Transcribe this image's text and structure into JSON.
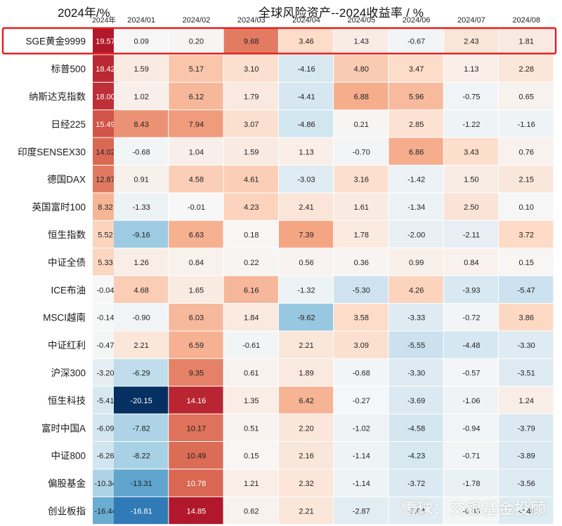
{
  "chart_data": {
    "type": "heatmap",
    "title": "全球风险资产--2024收益率 / %",
    "left_title": "2024年/%",
    "annual_header": "2024年",
    "columns": [
      "2024/01",
      "2024/02",
      "2024/03",
      "2024/04",
      "2024/05",
      "2024/06",
      "2024/07",
      "2024/08"
    ],
    "rows": [
      {
        "name": "SGE黄金9999",
        "annual": 19.57,
        "values": [
          0.09,
          0.2,
          9.68,
          3.46,
          1.43,
          -0.67,
          2.43,
          1.81
        ],
        "highlighted": true
      },
      {
        "name": "标普500",
        "annual": 18.42,
        "values": [
          1.59,
          5.17,
          3.1,
          -4.16,
          4.8,
          3.47,
          1.13,
          2.28
        ]
      },
      {
        "name": "纳斯达克指数",
        "annual": 18.0,
        "values": [
          1.02,
          6.12,
          1.79,
          -4.41,
          6.88,
          5.96,
          -0.75,
          0.65
        ]
      },
      {
        "name": "日经225",
        "annual": 15.49,
        "values": [
          8.43,
          7.94,
          3.07,
          -4.86,
          0.21,
          2.85,
          -1.22,
          -1.16
        ]
      },
      {
        "name": "印度SENSEX30",
        "annual": 14.02,
        "values": [
          -0.68,
          1.04,
          1.59,
          1.13,
          -0.7,
          6.86,
          3.43,
          0.76
        ]
      },
      {
        "name": "德国DAX",
        "annual": 12.87,
        "values": [
          0.91,
          4.58,
          4.61,
          -3.03,
          3.16,
          -1.42,
          1.5,
          2.15
        ]
      },
      {
        "name": "英国富时100",
        "annual": 8.32,
        "values": [
          -1.33,
          -0.01,
          4.23,
          2.41,
          1.61,
          -1.34,
          2.5,
          0.1
        ]
      },
      {
        "name": "恒生指数",
        "annual": 5.52,
        "values": [
          -9.16,
          6.63,
          0.18,
          7.39,
          1.78,
          -2.0,
          -2.11,
          3.72
        ]
      },
      {
        "name": "中证全债",
        "annual": 5.33,
        "values": [
          1.26,
          0.84,
          0.22,
          0.56,
          0.36,
          0.99,
          0.84,
          0.15
        ]
      },
      {
        "name": "ICE布油",
        "annual": -0.04,
        "values": [
          4.68,
          1.65,
          6.16,
          -1.32,
          -5.3,
          4.26,
          -3.93,
          -5.47
        ]
      },
      {
        "name": "MSCI越南",
        "annual": -0.14,
        "values": [
          -0.9,
          6.03,
          1.84,
          -9.62,
          3.58,
          -3.33,
          -0.72,
          3.86
        ]
      },
      {
        "name": "中证红利",
        "annual": -0.47,
        "values": [
          2.21,
          6.59,
          -0.61,
          2.21,
          3.09,
          -5.55,
          -4.48,
          -3.3
        ]
      },
      {
        "name": "沪深300",
        "annual": -3.2,
        "values": [
          -6.29,
          9.35,
          0.61,
          1.89,
          -0.68,
          -3.3,
          -0.57,
          -3.51
        ]
      },
      {
        "name": "恒生科技",
        "annual": -5.41,
        "values": [
          -20.15,
          14.16,
          1.35,
          6.42,
          -0.27,
          -3.69,
          -1.06,
          1.24
        ]
      },
      {
        "name": "富时中国A",
        "annual": -6.09,
        "values": [
          -7.82,
          10.17,
          0.51,
          2.2,
          -1.02,
          -4.58,
          -0.94,
          -3.79
        ]
      },
      {
        "name": "中证800",
        "annual": -6.26,
        "values": [
          -8.22,
          10.49,
          0.15,
          2.16,
          -1.14,
          -4.23,
          -0.71,
          -3.89
        ]
      },
      {
        "name": "偏股基金",
        "annual": -10.34,
        "values": [
          -13.31,
          10.78,
          1.21,
          2.32,
          -1.14,
          -3.72,
          -1.78,
          -3.56
        ]
      },
      {
        "name": "创业板指",
        "annual": -16.44,
        "values": [
          -16.81,
          14.85,
          0.62,
          2.21,
          -2.87,
          -3.04,
          -0.38,
          -3.48
        ]
      }
    ],
    "colors": {
      "positive": "#b2182b",
      "neutral": "#f7f7f7",
      "negative": "#053061",
      "highlight_border": "#e02020"
    },
    "watermark": "雪球：交银基金投顾"
  }
}
